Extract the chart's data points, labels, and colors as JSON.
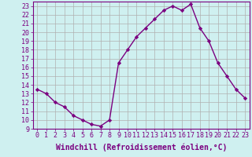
{
  "x": [
    0,
    1,
    2,
    3,
    4,
    5,
    6,
    7,
    8,
    9,
    10,
    11,
    12,
    13,
    14,
    15,
    16,
    17,
    18,
    19,
    20,
    21,
    22,
    23
  ],
  "y": [
    13.5,
    13.0,
    12.0,
    11.5,
    10.5,
    10.0,
    9.5,
    9.3,
    10.0,
    16.5,
    18.0,
    19.5,
    20.5,
    21.5,
    22.5,
    23.0,
    22.5,
    23.2,
    20.5,
    19.0,
    16.5,
    15.0,
    13.5,
    12.5
  ],
  "line_color": "#7B0080",
  "marker": "D",
  "marker_size": 2.2,
  "bg_color": "#cff0f0",
  "grid_color": "#b0b0b0",
  "xlabel": "Windchill (Refroidissement éolien,°C)",
  "xlabel_color": "#7B0080",
  "xlim": [
    -0.5,
    23.5
  ],
  "ylim": [
    9,
    23.5
  ],
  "yticks": [
    9,
    10,
    11,
    12,
    13,
    14,
    15,
    16,
    17,
    18,
    19,
    20,
    21,
    22,
    23
  ],
  "xticks": [
    0,
    1,
    2,
    3,
    4,
    5,
    6,
    7,
    8,
    9,
    10,
    11,
    12,
    13,
    14,
    15,
    16,
    17,
    18,
    19,
    20,
    21,
    22,
    23
  ],
  "tick_color": "#7B0080",
  "spine_color": "#7B0080",
  "line_width": 1.0,
  "tick_font_size": 6.0,
  "xlabel_font_size": 7.0
}
